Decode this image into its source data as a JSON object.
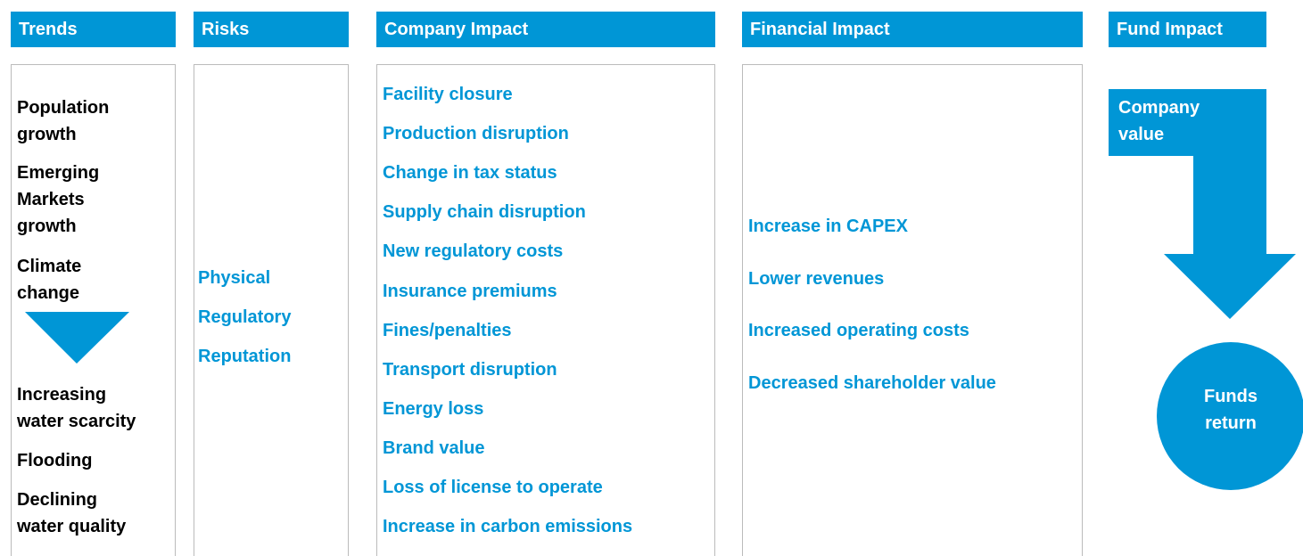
{
  "headers": [
    "Trends",
    "Risks",
    "Company Impact",
    "Financial Impact",
    "Fund Impact"
  ],
  "trends": [
    "Population\ngrowth",
    "Emerging\nMarkets\ngrowth",
    "Climate\nchange",
    "Increasing\nwater scarcity",
    "Flooding",
    "Declining\nwater quality"
  ],
  "risks": [
    "Physical",
    "Regulatory",
    "Reputation"
  ],
  "company_impact": [
    "Facility closure",
    "Production disruption",
    "Change in tax status",
    "Supply chain disruption",
    "New regulatory costs",
    "Insurance premiums",
    "Fines/penalties",
    "Transport disruption",
    "Energy loss",
    "Brand value",
    "Loss of license to operate",
    "Increase in carbon emissions"
  ],
  "financial_impact": [
    "Increase in CAPEX",
    "Lower revenues",
    "Increased operating costs",
    "Decreased shareholder value"
  ],
  "fund_impact": {
    "company_value": "Company\nvalue",
    "funds_return": "Funds\nreturn"
  }
}
